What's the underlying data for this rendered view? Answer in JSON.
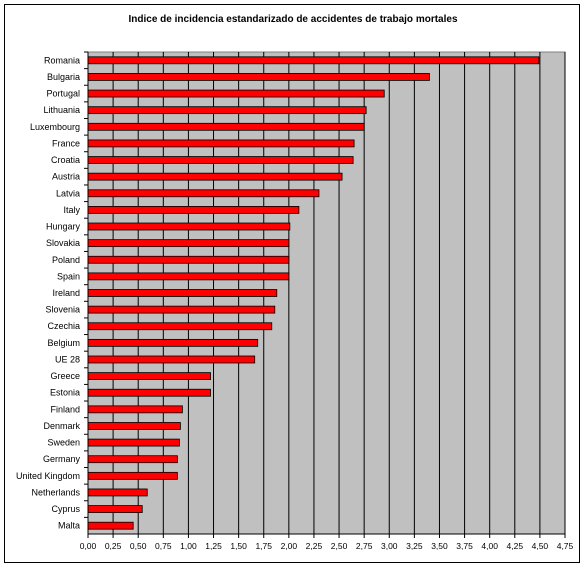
{
  "chart_data": {
    "type": "bar",
    "orientation": "horizontal",
    "title": "Indice de incidencia estandarizado de accidentes de trabajo mortales",
    "xlim": [
      0,
      4.75
    ],
    "x_ticks": [
      "0,00",
      "0,25",
      "0,50",
      "0,75",
      "1,00",
      "1,25",
      "1,50",
      "1,75",
      "2,00",
      "2,25",
      "2,50",
      "2,75",
      "3,00",
      "3,25",
      "3,50",
      "3,75",
      "4,00",
      "4,25",
      "4,50",
      "4,75"
    ],
    "grid": "vertical",
    "background_color": "#c0c0c0",
    "bar_color": "#ff0000",
    "categories": [
      "Romania",
      "Bulgaria",
      "Portugal",
      "Lithuania",
      "Luxembourg",
      "France",
      "Croatia",
      "Austria",
      "Latvia",
      "Italy",
      "Hungary",
      "Slovakia",
      "Poland",
      "Spain",
      "Ireland",
      "Slovenia",
      "Czechia",
      "Belgium",
      "UE 28",
      "Greece",
      "Estonia",
      "Finland",
      "Denmark",
      "Sweden",
      "Germany",
      "United Kingdom",
      "Netherlands",
      "Cyprus",
      "Malta"
    ],
    "values": [
      4.49,
      3.4,
      2.95,
      2.77,
      2.75,
      2.65,
      2.64,
      2.53,
      2.3,
      2.1,
      2.01,
      2.0,
      2.0,
      2.0,
      1.88,
      1.86,
      1.83,
      1.69,
      1.66,
      1.22,
      1.22,
      0.94,
      0.92,
      0.91,
      0.89,
      0.89,
      0.59,
      0.54,
      0.45
    ]
  }
}
